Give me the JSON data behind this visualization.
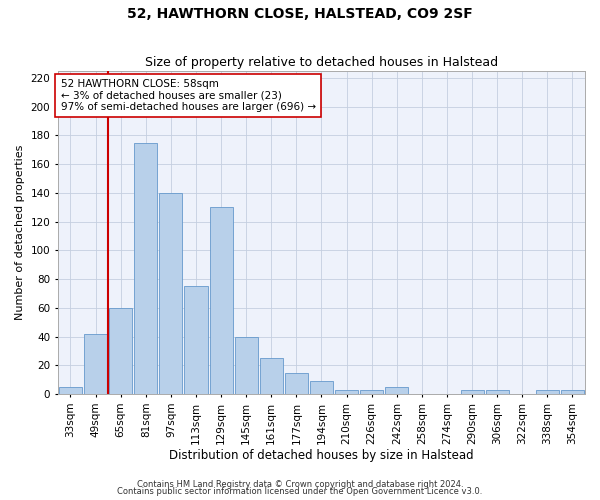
{
  "title": "52, HAWTHORN CLOSE, HALSTEAD, CO9 2SF",
  "subtitle": "Size of property relative to detached houses in Halstead",
  "xlabel": "Distribution of detached houses by size in Halstead",
  "ylabel": "Number of detached properties",
  "footnote1": "Contains HM Land Registry data © Crown copyright and database right 2024.",
  "footnote2": "Contains public sector information licensed under the Open Government Licence v3.0.",
  "bar_labels": [
    "33sqm",
    "49sqm",
    "65sqm",
    "81sqm",
    "97sqm",
    "113sqm",
    "129sqm",
    "145sqm",
    "161sqm",
    "177sqm",
    "194sqm",
    "210sqm",
    "226sqm",
    "242sqm",
    "258sqm",
    "274sqm",
    "290sqm",
    "306sqm",
    "322sqm",
    "338sqm",
    "354sqm"
  ],
  "bar_values": [
    5,
    42,
    60,
    175,
    140,
    75,
    130,
    40,
    25,
    15,
    9,
    3,
    3,
    5,
    0,
    0,
    3,
    3,
    0,
    3,
    3
  ],
  "bar_color": "#b8d0ea",
  "bar_edge_color": "#6699cc",
  "vline_x": 1.5,
  "vline_color": "#cc0000",
  "annotation_text": "52 HAWTHORN CLOSE: 58sqm\n← 3% of detached houses are smaller (23)\n97% of semi-detached houses are larger (696) →",
  "annotation_box_color": "#ffffff",
  "annotation_box_edge": "#cc0000",
  "ylim": [
    0,
    225
  ],
  "yticks": [
    0,
    20,
    40,
    60,
    80,
    100,
    120,
    140,
    160,
    180,
    200,
    220
  ],
  "plot_bg_color": "#eef2fb",
  "title_fontsize": 10,
  "subtitle_fontsize": 9,
  "ylabel_fontsize": 8,
  "xlabel_fontsize": 8.5,
  "tick_fontsize": 7.5,
  "footnote_fontsize": 6,
  "annot_fontsize": 7.5
}
